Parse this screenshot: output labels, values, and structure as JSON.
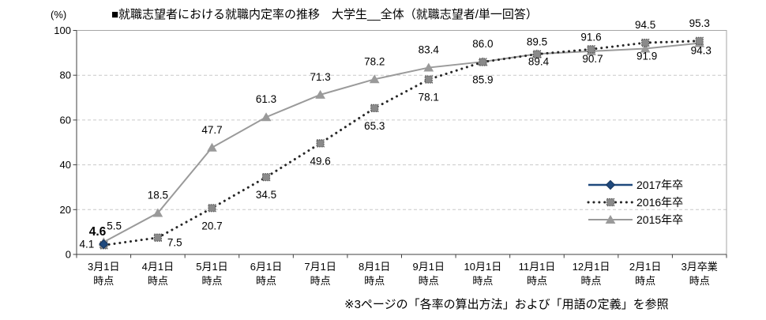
{
  "title": "■就職志望者における就職内定率の推移　大学生__全体（就職志望者/単一回答）",
  "footnote": "※3ページの「各率の算出方法」および「用語の定義」を参照",
  "chart_data": {
    "type": "line",
    "title": "就職志望者における就職内定率の推移 大学生 全体（就職志望者/単一回答）",
    "unit_label": "(%)",
    "ylim": [
      0,
      100
    ],
    "y_ticks": [
      0,
      20,
      40,
      60,
      80,
      100
    ],
    "grid": "horizontal-dashed",
    "legend_position": "right-middle",
    "categories": [
      "3月1日\n時点",
      "4月1日\n時点",
      "5月1日\n時点",
      "6月1日\n時点",
      "7月1日\n時点",
      "8月1日\n時点",
      "9月1日\n時点",
      "10月1日\n時点",
      "11月1日\n時点",
      "12月1日\n時点",
      "2月1日\n時点",
      "3月卒業\n時点"
    ],
    "series": [
      {
        "name": "2015年卒",
        "line": "solid",
        "line_color": "#9a9a9a",
        "marker": "triangle",
        "marker_color": "#9a9a9a",
        "values": [
          5.5,
          18.5,
          47.7,
          61.3,
          71.3,
          78.2,
          83.4,
          86.0,
          89.5,
          90.7,
          91.9,
          94.3
        ],
        "label_pos": [
          "above-right",
          "above",
          "above",
          "above",
          "above",
          "above",
          "above",
          "above",
          "above-near",
          "below-near",
          "below-near",
          "below-near"
        ]
      },
      {
        "name": "2016年卒",
        "line": "dotted",
        "line_color": "#262626",
        "marker": "square",
        "marker_color": "#8a8a8a",
        "values": [
          4.1,
          7.5,
          20.7,
          34.5,
          49.6,
          65.3,
          78.1,
          85.9,
          89.4,
          91.6,
          94.5,
          95.3
        ],
        "label_pos": [
          "left",
          "below-right",
          "below",
          "below",
          "below",
          "below",
          "below",
          "below",
          "below-near",
          "above-near",
          "above",
          "above"
        ]
      },
      {
        "name": "2017年卒",
        "line": "solid",
        "line_color": "#1F497D",
        "marker": "diamond",
        "marker_color": "#1F497D",
        "values": [
          4.6,
          null,
          null,
          null,
          null,
          null,
          null,
          null,
          null,
          null,
          null,
          null
        ],
        "label_pos": [
          "above-left-bold",
          null,
          null,
          null,
          null,
          null,
          null,
          null,
          null,
          null,
          null,
          null
        ]
      }
    ],
    "legend_order": [
      "2017年卒",
      "2016年卒",
      "2015年卒"
    ]
  }
}
